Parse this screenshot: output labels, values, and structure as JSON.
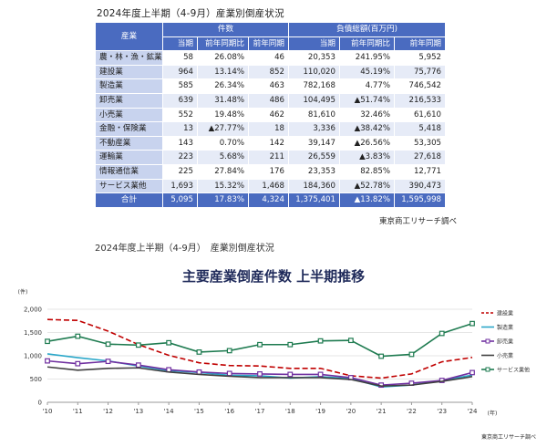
{
  "table": {
    "title": "2024年度上半期（4-9月）産業別倒産状況",
    "header_industry": "産業",
    "header_count": "件数",
    "header_debt": "負債総額(百万円)",
    "sub": [
      "当期",
      "前年同期比",
      "前年同期",
      "当期",
      "前年同期比",
      "前年同期"
    ],
    "rows": [
      {
        "label": "農・林・漁・鉱業",
        "c": "58",
        "cr": "26.08%",
        "cp": "46",
        "d": "20,353",
        "dr": "241.95%",
        "dp": "5,952"
      },
      {
        "label": "建設業",
        "c": "964",
        "cr": "13.14%",
        "cp": "852",
        "d": "110,020",
        "dr": "45.19%",
        "dp": "75,776"
      },
      {
        "label": "製造業",
        "c": "585",
        "cr": "26.34%",
        "cp": "463",
        "d": "782,168",
        "dr": "4.77%",
        "dp": "746,542"
      },
      {
        "label": "卸売業",
        "c": "639",
        "cr": "31.48%",
        "cp": "486",
        "d": "104,495",
        "dr": "▲51.74%",
        "dp": "216,533"
      },
      {
        "label": "小売業",
        "c": "552",
        "cr": "19.48%",
        "cp": "462",
        "d": "81,610",
        "dr": "32.46%",
        "dp": "61,610"
      },
      {
        "label": "金融・保険業",
        "c": "13",
        "cr": "▲27.77%",
        "cp": "18",
        "d": "3,336",
        "dr": "▲38.42%",
        "dp": "5,418"
      },
      {
        "label": "不動産業",
        "c": "143",
        "cr": "0.70%",
        "cp": "142",
        "d": "39,147",
        "dr": "▲26.56%",
        "dp": "53,305"
      },
      {
        "label": "運輸業",
        "c": "223",
        "cr": "5.68%",
        "cp": "211",
        "d": "26,559",
        "dr": "▲3.83%",
        "dp": "27,618"
      },
      {
        "label": "情報通信業",
        "c": "225",
        "cr": "27.84%",
        "cp": "176",
        "d": "23,353",
        "dr": "82.85%",
        "dp": "12,771"
      },
      {
        "label": "サービス業他",
        "c": "1,693",
        "cr": "15.32%",
        "cp": "1,468",
        "d": "184,360",
        "dr": "▲52.78%",
        "dp": "390,473"
      }
    ],
    "total": {
      "label": "合計",
      "c": "5,095",
      "cr": "17.83%",
      "cp": "4,324",
      "d": "1,375,401",
      "dr": "▲13.82%",
      "dp": "1,595,998"
    },
    "source": "東京商工リサーチ調べ"
  },
  "second_title": "2024年度上半期（4-9月）　産業別倒産状況",
  "chart_source": "東京商工リサーチ調べ",
  "colors": {
    "header_blue": "#4a6bc0",
    "label_cell": "#c8d3ee",
    "stripe": "#e6ebf7",
    "axis_text": "#333333",
    "grid": "#e6e6e6"
  },
  "chart_data": {
    "type": "line",
    "title": "主要産業倒産件数 上半期推移",
    "y_unit": "(件)",
    "x_unit": "(年)",
    "x": [
      "'10",
      "'11",
      "'12",
      "'13",
      "'14",
      "'15",
      "'16",
      "'17",
      "'18",
      "'19",
      "'20",
      "'21",
      "'22",
      "'23",
      "'24"
    ],
    "ylim": [
      0,
      2000
    ],
    "yticks": [
      "0",
      "500",
      "1,000",
      "1,500",
      "2,000"
    ],
    "grid": true,
    "legend_position": "right",
    "series": [
      {
        "name": "建設業",
        "color": "#c00000",
        "dash": "6,3",
        "marker": "none",
        "values": [
          1780,
          1760,
          1530,
          1240,
          1010,
          850,
          790,
          780,
          730,
          730,
          570,
          520,
          610,
          870,
          964
        ]
      },
      {
        "name": "製造業",
        "color": "#2aa7c9",
        "dash": "",
        "marker": "none",
        "values": [
          1040,
          960,
          890,
          780,
          680,
          640,
          580,
          570,
          520,
          550,
          510,
          330,
          370,
          470,
          585
        ]
      },
      {
        "name": "卸売業",
        "color": "#7030a0",
        "dash": "",
        "marker": "square",
        "values": [
          890,
          830,
          880,
          800,
          700,
          650,
          620,
          610,
          600,
          600,
          530,
          370,
          410,
          470,
          639
        ]
      },
      {
        "name": "小売業",
        "color": "#404040",
        "dash": "",
        "marker": "none",
        "values": [
          760,
          690,
          730,
          740,
          650,
          600,
          560,
          530,
          530,
          530,
          490,
          350,
          370,
          450,
          552
        ]
      },
      {
        "name": "サービス業他",
        "color": "#1e7b50",
        "dash": "",
        "marker": "square",
        "values": [
          1310,
          1420,
          1250,
          1230,
          1280,
          1080,
          1110,
          1240,
          1240,
          1320,
          1330,
          990,
          1030,
          1480,
          1693
        ]
      }
    ]
  }
}
